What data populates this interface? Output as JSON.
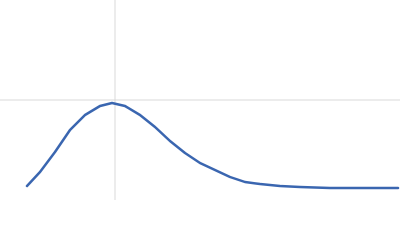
{
  "chart_data": {
    "type": "line",
    "x": [
      27,
      40,
      55,
      70,
      85,
      100,
      112,
      125,
      140,
      155,
      170,
      185,
      200,
      215,
      230,
      245,
      260,
      280,
      300,
      330,
      360,
      398
    ],
    "series": [
      {
        "color": "#3a66b0",
        "values": [
          14,
          28,
          48,
          70,
          85,
          94,
          97,
          94,
          85,
          73,
          59,
          47,
          37,
          30,
          23,
          18,
          16,
          14,
          13,
          12,
          12,
          12
        ]
      }
    ],
    "xlim": [
      0,
      400
    ],
    "ylim": [
      0,
      200
    ],
    "xgrid": [
      115
    ],
    "ygrid": [
      100
    ],
    "grid": true
  }
}
